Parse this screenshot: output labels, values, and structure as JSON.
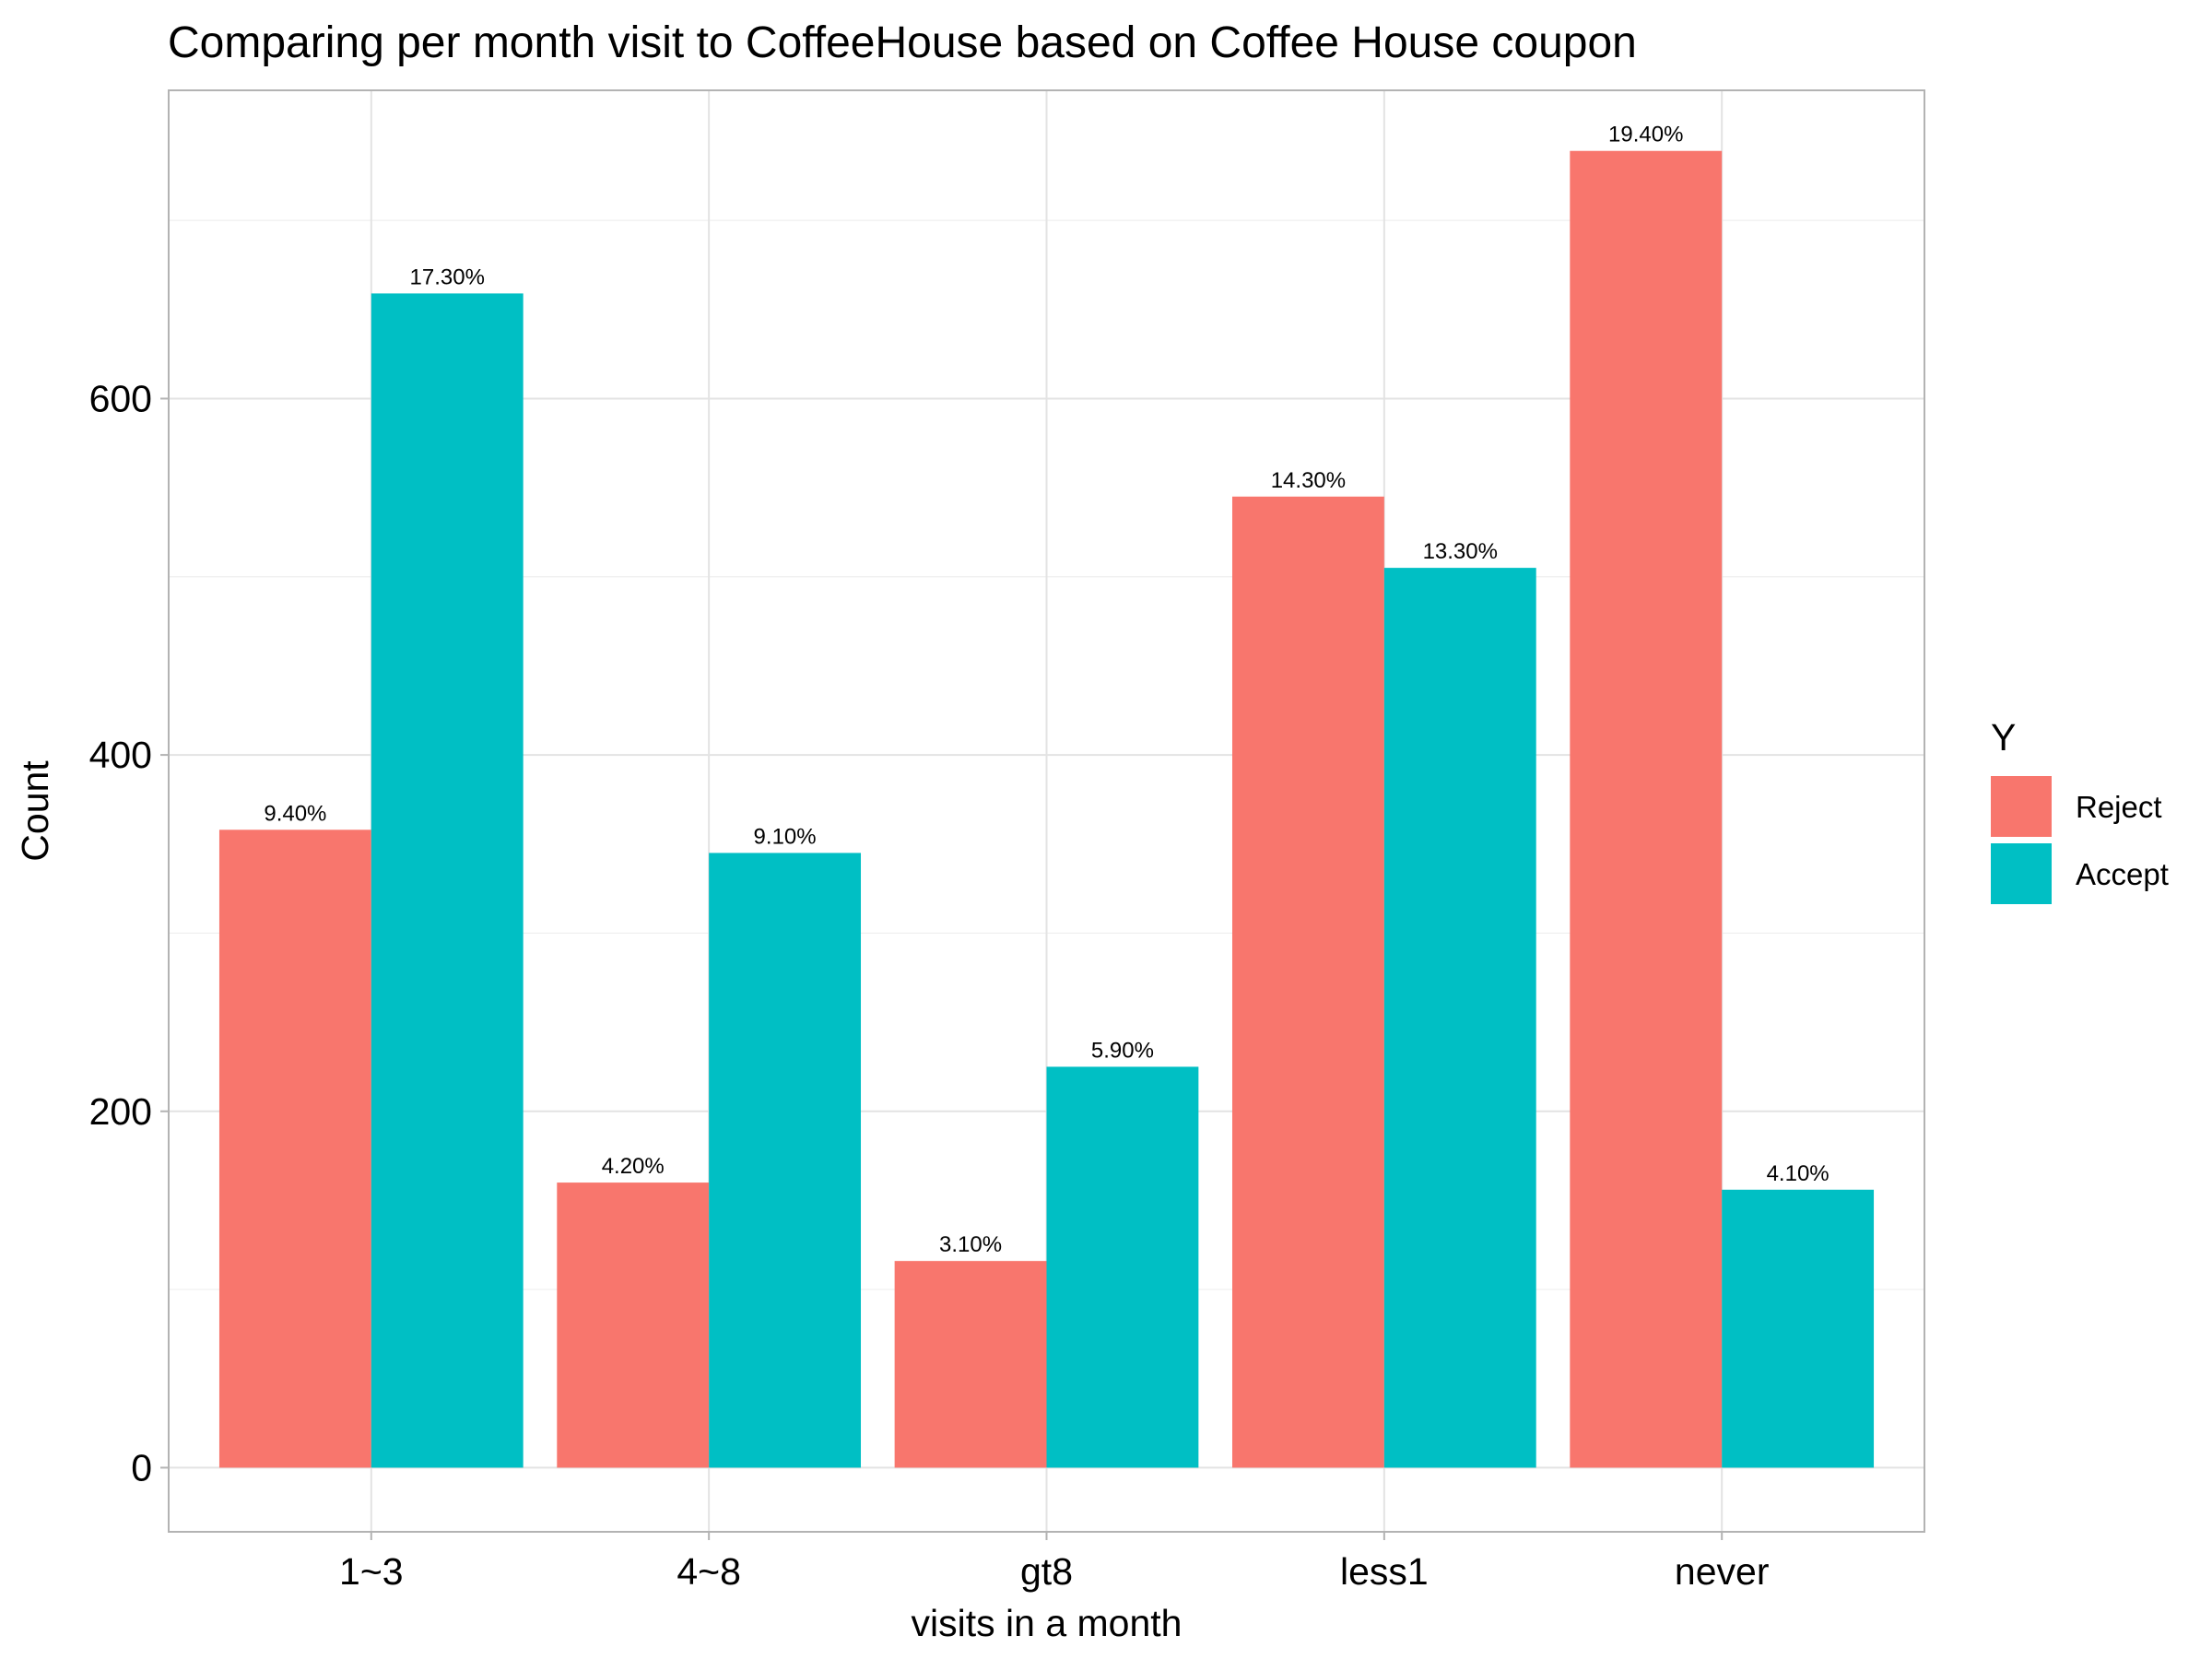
{
  "chart_data": {
    "type": "bar",
    "title": "Comparing per month visit to CoffeeHouse based on Coffee House coupon",
    "xlabel": "visits in a month",
    "ylabel": "Count",
    "categories": [
      "1~3",
      "4~8",
      "gt8",
      "less1",
      "never"
    ],
    "ylim": [
      -36,
      773
    ],
    "yticks": [
      0,
      200,
      400,
      600
    ],
    "grid": true,
    "legend": {
      "title": "Y",
      "placement": "right"
    },
    "series": [
      {
        "name": "Reject",
        "color": "#F8766D",
        "values": [
          358,
          160,
          116,
          545,
          739
        ],
        "labels": [
          "9.40%",
          "4.20%",
          "3.10%",
          "14.30%",
          "19.40%"
        ]
      },
      {
        "name": "Accept",
        "color": "#00BFC4",
        "values": [
          659,
          345,
          225,
          505,
          156
        ],
        "labels": [
          "17.30%",
          "9.10%",
          "5.90%",
          "13.30%",
          "4.10%"
        ]
      }
    ]
  }
}
